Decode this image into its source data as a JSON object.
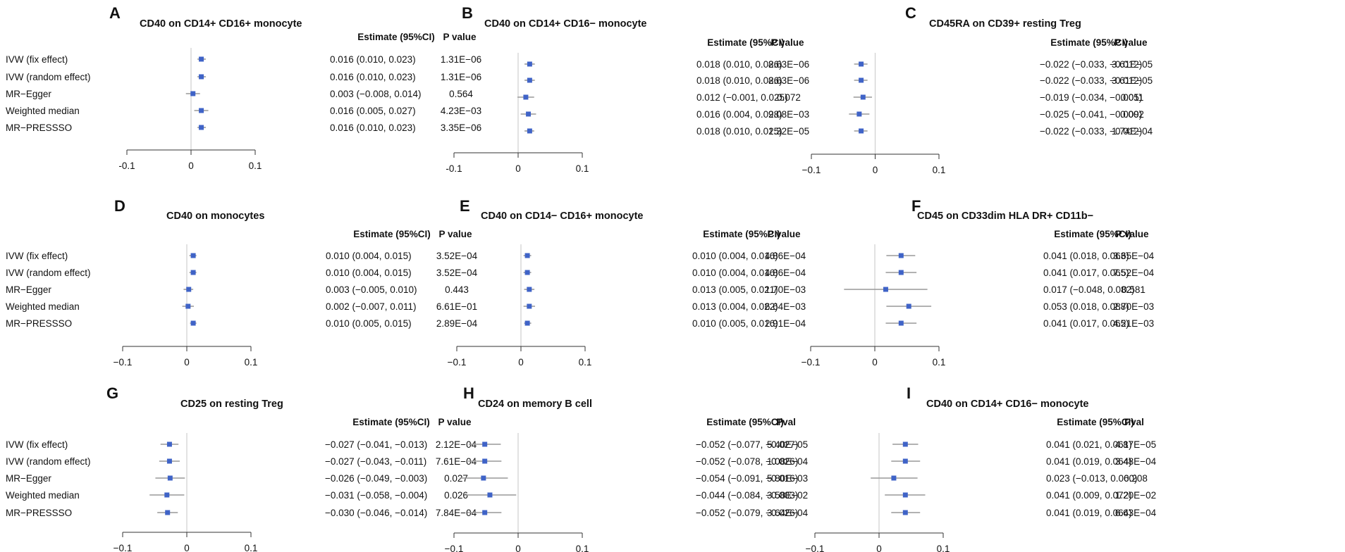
{
  "styles": {
    "point_color": "#3f63c7",
    "ci_color": "#999999",
    "zero_line_color": "#cfcfcf",
    "axis_color": "#333333"
  },
  "chart_data": [
    {
      "type": "forest",
      "panel_letter": "A",
      "title": "CD40 on CD14+ CD16+ monocyte",
      "show_row_labels": true,
      "estimate_header": "Estimate (95%CI)",
      "p_header": "P value",
      "xlim": [
        -0.1,
        0.1
      ],
      "xticks": [
        "-0.1",
        "0",
        "0.1"
      ],
      "xtick_values": [
        -0.1,
        0,
        0.1
      ],
      "rows": [
        {
          "label": "IVW (fix effect)",
          "est": 0.016,
          "lo": 0.01,
          "hi": 0.023,
          "est_text": "0.016 (0.010, 0.023)",
          "p_text": "1.31E−06"
        },
        {
          "label": "IVW (random effect)",
          "est": 0.016,
          "lo": 0.01,
          "hi": 0.023,
          "est_text": "0.016 (0.010, 0.023)",
          "p_text": "1.31E−06"
        },
        {
          "label": "MR−Egger",
          "est": 0.003,
          "lo": -0.008,
          "hi": 0.014,
          "est_text": "0.003 (−0.008, 0.014)",
          "p_text": "0.564"
        },
        {
          "label": "Weighted median",
          "est": 0.016,
          "lo": 0.005,
          "hi": 0.027,
          "est_text": "0.016 (0.005, 0.027)",
          "p_text": "4.23E−03"
        },
        {
          "label": "MR−PRESSSO",
          "est": 0.016,
          "lo": 0.01,
          "hi": 0.023,
          "est_text": "0.016 (0.010, 0.023)",
          "p_text": "3.35E−06"
        }
      ]
    },
    {
      "type": "forest",
      "panel_letter": "B",
      "title": "CD40 on CD14+ CD16− monocyte",
      "show_row_labels": false,
      "estimate_header": "Estimate  (95%CI)",
      "p_header": "P value",
      "xlim": [
        -0.1,
        0.1
      ],
      "xticks": [
        "-0.1",
        "0",
        "0.1"
      ],
      "xtick_values": [
        -0.1,
        0,
        0.1
      ],
      "rows": [
        {
          "label": "IVW (fix effect)",
          "est": 0.018,
          "lo": 0.01,
          "hi": 0.026,
          "est_text": "0.018 (0.010, 0.026)",
          "p_text": "8.63E−06"
        },
        {
          "label": "IVW (random effect)",
          "est": 0.018,
          "lo": 0.01,
          "hi": 0.026,
          "est_text": "0.018 (0.010, 0.026)",
          "p_text": "8.63E−06"
        },
        {
          "label": "MR−Egger",
          "est": 0.012,
          "lo": -0.001,
          "hi": 0.025,
          "est_text": "0.012 (−0.001, 0.025)",
          "p_text": "0.072"
        },
        {
          "label": "Weighted median",
          "est": 0.016,
          "lo": 0.004,
          "hi": 0.028,
          "est_text": "0.016 (0.004, 0.028)",
          "p_text": "9.08E−03"
        },
        {
          "label": "MR−PRESSSO",
          "est": 0.018,
          "lo": 0.01,
          "hi": 0.025,
          "est_text": "0.018 (0.010, 0.025)",
          "p_text": "1.32E−05"
        }
      ]
    },
    {
      "type": "forest",
      "panel_letter": "C",
      "title": "CD45RA on CD39+ resting Treg",
      "show_row_labels": false,
      "estimate_header": "Estimate  (95%CI)",
      "p_header": "P value",
      "xlim": [
        -0.1,
        0.1
      ],
      "xticks": [
        "−0.1",
        "0",
        "0.1"
      ],
      "xtick_values": [
        -0.1,
        0,
        0.1
      ],
      "rows": [
        {
          "label": "IVW (fix effect)",
          "est": -0.022,
          "lo": -0.033,
          "hi": -0.012,
          "est_text": "−0.022 (−0.033, −0.012)",
          "p_text": "3.61E−05"
        },
        {
          "label": "IVW (random effect)",
          "est": -0.022,
          "lo": -0.033,
          "hi": -0.012,
          "est_text": "−0.022 (−0.033, −0.012)",
          "p_text": "3.61E−05"
        },
        {
          "label": "MR−Egger",
          "est": -0.019,
          "lo": -0.034,
          "hi": -0.005,
          "est_text": "−0.019 (−0.034, −0.005)",
          "p_text": "0.011"
        },
        {
          "label": "Weighted median",
          "est": -0.025,
          "lo": -0.041,
          "hi": -0.009,
          "est_text": "−0.025 (−0.041, −0.009)",
          "p_text": "0.002"
        },
        {
          "label": "MR−PRESSSO",
          "est": -0.022,
          "lo": -0.033,
          "hi": -0.012,
          "est_text": "−0.022 (−0.033, −0.012)",
          "p_text": "1.74E−04"
        }
      ]
    },
    {
      "type": "forest",
      "panel_letter": "D",
      "title": "CD40 on monocytes",
      "show_row_labels": true,
      "estimate_header": "Estimate  (95%CI)",
      "p_header": "P value",
      "xlim": [
        -0.1,
        0.1
      ],
      "xticks": [
        "−0.1",
        "0",
        "0.1"
      ],
      "xtick_values": [
        -0.1,
        0,
        0.1
      ],
      "rows": [
        {
          "label": "IVW (fix effect)",
          "est": 0.01,
          "lo": 0.004,
          "hi": 0.015,
          "est_text": "0.010 (0.004, 0.015)",
          "p_text": "3.52E−04"
        },
        {
          "label": "IVW (random effect)",
          "est": 0.01,
          "lo": 0.004,
          "hi": 0.015,
          "est_text": "0.010 (0.004, 0.015)",
          "p_text": "3.52E−04"
        },
        {
          "label": "MR−Egger",
          "est": 0.003,
          "lo": -0.005,
          "hi": 0.01,
          "est_text": "0.003 (−0.005, 0.010)",
          "p_text": "0.443"
        },
        {
          "label": "Weighted median",
          "est": 0.002,
          "lo": -0.007,
          "hi": 0.011,
          "est_text": "0.002 (−0.007, 0.011)",
          "p_text": "6.61E−01"
        },
        {
          "label": "MR−PRESSSO",
          "est": 0.01,
          "lo": 0.005,
          "hi": 0.015,
          "est_text": "0.010 (0.005, 0.015)",
          "p_text": "2.89E−04"
        }
      ]
    },
    {
      "type": "forest",
      "panel_letter": "E",
      "title": "CD40 on CD14− CD16+ monocyte",
      "show_row_labels": false,
      "estimate_header": "Estimate  (95%CI)",
      "p_header": "P value",
      "xlim": [
        -0.1,
        0.1
      ],
      "xticks": [
        "−0.1",
        "0",
        "0.1"
      ],
      "xtick_values": [
        -0.1,
        0,
        0.1
      ],
      "rows": [
        {
          "label": "IVW (fix effect)",
          "est": 0.01,
          "lo": 0.004,
          "hi": 0.016,
          "est_text": "0.010 (0.004, 0.016)",
          "p_text": "4.86E−04"
        },
        {
          "label": "IVW (random effect)",
          "est": 0.01,
          "lo": 0.004,
          "hi": 0.016,
          "est_text": "0.010 (0.004, 0.016)",
          "p_text": "4.86E−04"
        },
        {
          "label": "MR−Egger",
          "est": 0.013,
          "lo": 0.005,
          "hi": 0.021,
          "est_text": "0.013 (0.005, 0.021)",
          "p_text": "1.70E−03"
        },
        {
          "label": "Weighted median",
          "est": 0.013,
          "lo": 0.004,
          "hi": 0.022,
          "est_text": "0.013 (0.004, 0.022)",
          "p_text": "6.64E−03"
        },
        {
          "label": "MR−PRESSSO",
          "est": 0.01,
          "lo": 0.005,
          "hi": 0.016,
          "est_text": "0.010 (0.005, 0.016)",
          "p_text": "2.91E−04"
        }
      ]
    },
    {
      "type": "forest",
      "panel_letter": "F",
      "title": "CD45 on CD33dim HLA DR+ CD11b−",
      "show_row_labels": false,
      "estimate_header": "Estimate  (95%CI)",
      "p_header": "P value",
      "xlim": [
        -0.1,
        0.1
      ],
      "xticks": [
        "−0.1",
        "0",
        "0.1"
      ],
      "xtick_values": [
        -0.1,
        0,
        0.1
      ],
      "rows": [
        {
          "label": "IVW (fix effect)",
          "est": 0.041,
          "lo": 0.018,
          "hi": 0.063,
          "est_text": "0.041 (0.018, 0.063)",
          "p_text": "3.65E−04"
        },
        {
          "label": "IVW (random effect)",
          "est": 0.041,
          "lo": 0.017,
          "hi": 0.065,
          "est_text": "0.041 (0.017, 0.065)",
          "p_text": "7.52E−04"
        },
        {
          "label": "MR−Egger",
          "est": 0.017,
          "lo": -0.048,
          "hi": 0.082,
          "est_text": "0.017 (−0.048, 0.082)",
          "p_text": "0.581"
        },
        {
          "label": "Weighted median",
          "est": 0.053,
          "lo": 0.018,
          "hi": 0.088,
          "est_text": "0.053 (0.018, 0.088)",
          "p_text": "2.70E−03"
        },
        {
          "label": "MR−PRESSSO",
          "est": 0.041,
          "lo": 0.017,
          "hi": 0.065,
          "est_text": "0.041 (0.017, 0.065)",
          "p_text": "4.21E−03"
        }
      ]
    },
    {
      "type": "forest",
      "panel_letter": "G",
      "title": "CD25 on resting Treg",
      "show_row_labels": true,
      "estimate_header": "Estimate  (95%CI)",
      "p_header": "P value",
      "xlim": [
        -0.1,
        0.1
      ],
      "xticks": [
        "−0.1",
        "0",
        "0.1"
      ],
      "xtick_values": [
        -0.1,
        0,
        0.1
      ],
      "rows": [
        {
          "label": "IVW (fix effect)",
          "est": -0.027,
          "lo": -0.041,
          "hi": -0.013,
          "est_text": "−0.027 (−0.041, −0.013)",
          "p_text": "2.12E−04"
        },
        {
          "label": "IVW (random effect)",
          "est": -0.027,
          "lo": -0.043,
          "hi": -0.011,
          "est_text": "−0.027 (−0.043, −0.011)",
          "p_text": "7.61E−04"
        },
        {
          "label": "MR−Egger",
          "est": -0.026,
          "lo": -0.049,
          "hi": -0.003,
          "est_text": "−0.026 (−0.049, −0.003)",
          "p_text": "0.027"
        },
        {
          "label": "Weighted median",
          "est": -0.031,
          "lo": -0.058,
          "hi": -0.004,
          "est_text": "−0.031 (−0.058, −0.004)",
          "p_text": "0.026"
        },
        {
          "label": "MR−PRESSSO",
          "est": -0.03,
          "lo": -0.046,
          "hi": -0.014,
          "est_text": "−0.030 (−0.046, −0.014)",
          "p_text": "7.84E−04"
        }
      ]
    },
    {
      "type": "forest",
      "panel_letter": "H",
      "title": "CD24 on memory B cell",
      "show_row_labels": false,
      "estimate_header": "Estimate  (95%CI)",
      "p_header": "Pval",
      "xlim": [
        -0.1,
        0.1
      ],
      "xticks": [
        "−0.1",
        "0",
        "0.1"
      ],
      "xtick_values": [
        -0.1,
        0,
        0.1
      ],
      "rows": [
        {
          "label": "IVW (fix effect)",
          "est": -0.052,
          "lo": -0.077,
          "hi": -0.027,
          "est_text": "−0.052 (−0.077, −0.027)",
          "p_text": "5.40E−05"
        },
        {
          "label": "IVW (random effect)",
          "est": -0.052,
          "lo": -0.078,
          "hi": -0.026,
          "est_text": "−0.052 (−0.078, −0.026)",
          "p_text": "1.08E−04"
        },
        {
          "label": "MR−Egger",
          "est": -0.054,
          "lo": -0.091,
          "hi": -0.016,
          "est_text": "−0.054 (−0.091, −0.016)",
          "p_text": "5.80E−03"
        },
        {
          "label": "Weighted median",
          "est": -0.044,
          "lo": -0.084,
          "hi": -0.003,
          "est_text": "−0.044 (−0.084, −0.003)",
          "p_text": "3.58E−02"
        },
        {
          "label": "MR−PRESSSO",
          "est": -0.052,
          "lo": -0.079,
          "hi": -0.026,
          "est_text": "−0.052 (−0.079, −0.026)",
          "p_text": "3.64E−04"
        }
      ]
    },
    {
      "type": "forest",
      "panel_letter": "I",
      "title": "CD40 on CD14+ CD16− monocyte",
      "show_row_labels": false,
      "estimate_header": "Estimate  (95%CI)",
      "p_header": "Pval",
      "xlim": [
        -0.1,
        0.1
      ],
      "xticks": [
        "−0.1",
        "0",
        "0.1"
      ],
      "xtick_values": [
        -0.1,
        0,
        0.1
      ],
      "rows": [
        {
          "label": "IVW (fix effect)",
          "est": 0.041,
          "lo": 0.021,
          "hi": 0.061,
          "est_text": "0.041 (0.021, 0.061)",
          "p_text": "4.87E−05"
        },
        {
          "label": "IVW (random effect)",
          "est": 0.041,
          "lo": 0.019,
          "hi": 0.064,
          "est_text": "0.041 (0.019, 0.064)",
          "p_text": "3.48E−04"
        },
        {
          "label": "MR−Egger",
          "est": 0.023,
          "lo": -0.013,
          "hi": 0.06,
          "est_text": "0.023 (−0.013, 0.060)",
          "p_text": "0.208"
        },
        {
          "label": "Weighted median",
          "est": 0.041,
          "lo": 0.009,
          "hi": 0.072,
          "est_text": "0.041 (0.009, 0.072)",
          "p_text": "1.20E−02"
        },
        {
          "label": "MR−PRESSSO",
          "est": 0.041,
          "lo": 0.019,
          "hi": 0.064,
          "est_text": "0.041 (0.019, 0.064)",
          "p_text": "6.63E−04"
        }
      ]
    }
  ]
}
